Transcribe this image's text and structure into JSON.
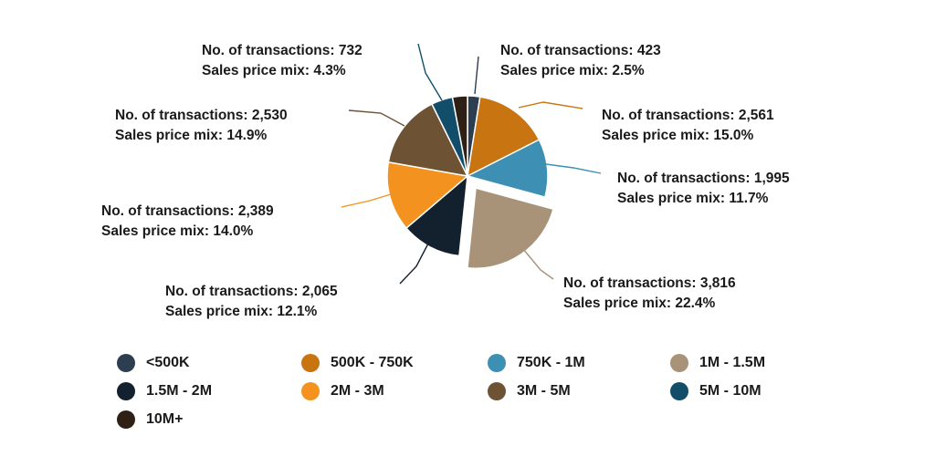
{
  "chart_data": {
    "type": "pie",
    "title": "",
    "series_label_prefix": "No. of transactions: ",
    "share_label_prefix": "Sales price mix: ",
    "slices": [
      {
        "category": "<500K",
        "transactions": 423,
        "transactions_label": "423",
        "share": 2.5,
        "share_label": "2.5%",
        "color": "#2c3e50",
        "exploded": false
      },
      {
        "category": "500K - 750K",
        "transactions": 2561,
        "transactions_label": "2,561",
        "share": 15.0,
        "share_label": "15.0%",
        "color": "#c77411",
        "exploded": false
      },
      {
        "category": "750K - 1M",
        "transactions": 1995,
        "transactions_label": "1,995",
        "share": 11.7,
        "share_label": "11.7%",
        "color": "#3d8fb3",
        "exploded": false
      },
      {
        "category": "1M - 1.5M",
        "transactions": 3816,
        "transactions_label": "3,816",
        "share": 22.4,
        "share_label": "22.4%",
        "color": "#a89278",
        "exploded": true
      },
      {
        "category": "1.5M - 2M",
        "transactions": 2065,
        "transactions_label": "2,065",
        "share": 12.1,
        "share_label": "12.1%",
        "color": "#13202e",
        "exploded": false
      },
      {
        "category": "2M - 3M",
        "transactions": 2389,
        "transactions_label": "2,389",
        "share": 14.0,
        "share_label": "14.0%",
        "color": "#f3921e",
        "exploded": false
      },
      {
        "category": "3M - 5M",
        "transactions": 2530,
        "transactions_label": "2,530",
        "share": 14.9,
        "share_label": "14.9%",
        "color": "#6e5234",
        "exploded": false
      },
      {
        "category": "5M - 10M",
        "transactions": 732,
        "transactions_label": "732",
        "share": 4.3,
        "share_label": "4.3%",
        "color": "#124e6a",
        "exploded": false
      },
      {
        "category": "10M+",
        "transactions": 0,
        "transactions_label": "",
        "share": 3.0,
        "share_label": "",
        "color": "#2e2014",
        "exploded": false
      }
    ],
    "start_angle_deg": 0,
    "direction": "clockwise",
    "legend": {
      "placement": "bottom",
      "columns": 4,
      "items": [
        "<500K",
        "500K - 750K",
        "750K - 1M",
        "1M - 1.5M",
        "1.5M - 2M",
        "2M - 3M",
        "3M - 5M",
        "5M - 10M",
        "10M+"
      ]
    }
  }
}
